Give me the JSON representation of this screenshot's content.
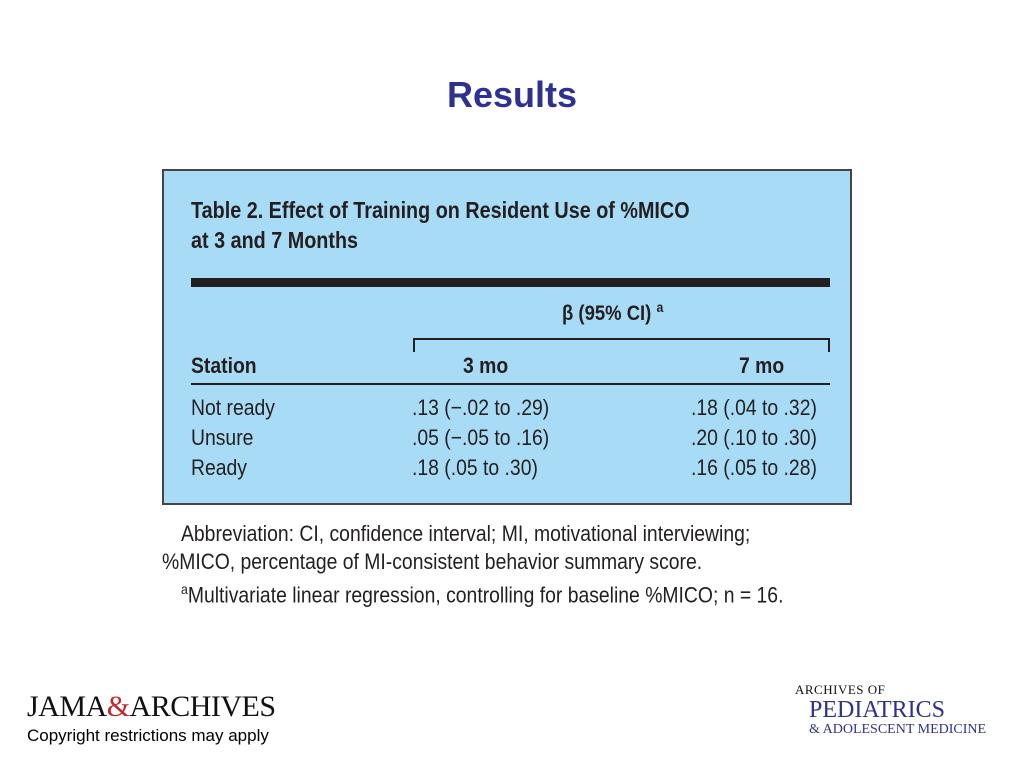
{
  "slide": {
    "title": "Results"
  },
  "table": {
    "caption_line1": "Table 2. Effect of Training on Resident Use of %MICO",
    "caption_line2": "at 3 and 7 Months",
    "group_header": "β (95% CI)",
    "group_header_sup": "a",
    "columns": [
      "Station",
      "3 mo",
      "7 mo"
    ],
    "rows": [
      [
        "Not ready",
        ".13 (−.02 to .29)",
        ".18 (.04 to .32)"
      ],
      [
        "Unsure",
        ".05 (−.05 to .16)",
        ".20 (.10 to .30)"
      ],
      [
        "Ready",
        ".18 (.05 to .30)",
        ".16 (.05 to .28)"
      ]
    ]
  },
  "footnotes": {
    "abbrev_line1": "Abbreviation: CI, confidence interval; MI, motivational interviewing;",
    "abbrev_line2": "%MICO, percentage of MI-consistent behavior summary score.",
    "note_marker": "a",
    "note_text": "Multivariate linear regression, controlling for baseline %MICO; n = 16."
  },
  "footer": {
    "jama_left": "JAMA",
    "jama_amp": "&",
    "jama_right": "ARCHIVES",
    "copyright": "Copyright restrictions may apply",
    "journal_line1": "ARCHIVES OF",
    "journal_line2": "PEDIATRICS",
    "journal_line3": "& ADOLESCENT MEDICINE"
  },
  "colors": {
    "title": "#2e3192",
    "table_background": "#a8dcf6",
    "logo_ampersand": "#c1272d"
  }
}
